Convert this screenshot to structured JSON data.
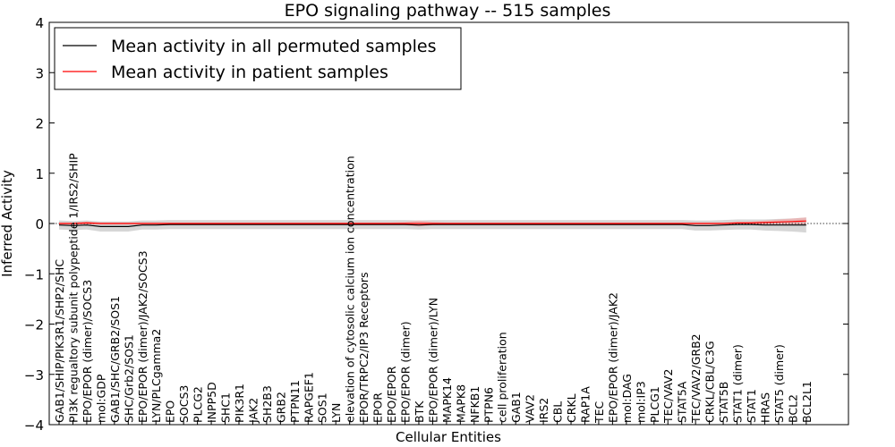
{
  "chart_data": {
    "type": "line",
    "title": "EPO signaling pathway -- 515 samples",
    "xlabel": "Cellular Entities",
    "ylabel": "Inferred Activity",
    "ylim": [
      -4,
      4
    ],
    "yticks": [
      -4,
      -3,
      -2,
      -1,
      0,
      1,
      2,
      3,
      4
    ],
    "ytick_labels": [
      "−4",
      "−3",
      "−2",
      "−1",
      "0",
      "1",
      "2",
      "3",
      "4"
    ],
    "legend_position": "top-left",
    "grid": false,
    "categories": [
      "GAB1/SHIP/PIK3R1/SHP2/SHC",
      "PI3K regualtory subunit polypeptide 1/IRS2/SHIP",
      "EPO/EPOR (dimer)/SOCS3",
      "mol:GDP",
      "GAB1/SHC/GRB2/SOS1",
      "SHC/Grb2/SOS1",
      "EPO/EPOR (dimer)/JAK2/SOCS3",
      "LYN/PLCgamma2",
      "EPO",
      "SOCS3",
      "PLCG2",
      "INPP5D",
      "SHC1",
      "PIK3R1",
      "JAK2",
      "SH2B3",
      "GRB2",
      "PTPN11",
      "RAPGEF1",
      "SOS1",
      "LYN",
      "elevation of cytosolic calcium ion concentration",
      "EPOR/TRPC2/IP3 Receptors",
      "EPOR",
      "EPO/EPOR",
      "EPO/EPOR (dimer)",
      "BTK",
      "EPO/EPOR (dimer)/LYN",
      "MAPK14",
      "MAPK8",
      "NFKB1",
      "PTPN6",
      "cell proliferation",
      "GAB1",
      "VAV2",
      "IRS2",
      "CBL",
      "CRKL",
      "RAP1A",
      "TEC",
      "EPO/EPOR (dimer)/JAK2",
      "mol:DAG",
      "mol:IP3",
      "PLCG1",
      "TEC/VAV2",
      "STAT5A",
      "TEC/VAV2/GRB2",
      "CRKL/CBL/C3G",
      "STAT5B",
      "STAT1 (dimer)",
      "STAT1",
      "HRAS",
      "STAT5 (dimer)",
      "BCL2",
      "BCL2L1"
    ],
    "series": [
      {
        "name": "Mean activity in all permuted samples",
        "color": "#000000",
        "band_color": "#c8c8c8",
        "values": [
          -0.03,
          -0.04,
          -0.03,
          -0.06,
          -0.06,
          -0.06,
          -0.03,
          -0.03,
          -0.02,
          -0.02,
          -0.02,
          -0.02,
          -0.02,
          -0.02,
          -0.02,
          -0.02,
          -0.02,
          -0.02,
          -0.02,
          -0.02,
          -0.02,
          -0.02,
          -0.02,
          -0.02,
          -0.02,
          -0.02,
          -0.03,
          -0.02,
          -0.02,
          -0.02,
          -0.02,
          -0.02,
          -0.02,
          -0.02,
          -0.02,
          -0.02,
          -0.02,
          -0.02,
          -0.02,
          -0.02,
          -0.02,
          -0.02,
          -0.02,
          -0.02,
          -0.02,
          -0.02,
          -0.04,
          -0.04,
          -0.03,
          -0.02,
          -0.02,
          -0.03,
          -0.03,
          -0.03,
          -0.03
        ],
        "band_half_width": [
          0.09,
          0.09,
          0.09,
          0.1,
          0.1,
          0.1,
          0.09,
          0.09,
          0.09,
          0.09,
          0.09,
          0.09,
          0.09,
          0.09,
          0.09,
          0.09,
          0.09,
          0.09,
          0.09,
          0.09,
          0.09,
          0.09,
          0.09,
          0.09,
          0.09,
          0.09,
          0.09,
          0.09,
          0.09,
          0.09,
          0.09,
          0.09,
          0.09,
          0.09,
          0.09,
          0.09,
          0.09,
          0.09,
          0.09,
          0.09,
          0.09,
          0.09,
          0.09,
          0.09,
          0.09,
          0.09,
          0.1,
          0.1,
          0.1,
          0.1,
          0.1,
          0.11,
          0.12,
          0.13,
          0.15
        ]
      },
      {
        "name": "Mean activity in patient samples",
        "color": "#ff0000",
        "band_color": "#f4a0a0",
        "values": [
          0.0,
          0.0,
          0.01,
          0.0,
          0.0,
          0.0,
          0.0,
          0.0,
          0.0,
          0.0,
          0.0,
          0.0,
          0.0,
          0.0,
          0.0,
          0.0,
          0.0,
          0.0,
          0.0,
          0.0,
          0.0,
          0.0,
          0.0,
          0.0,
          0.0,
          0.0,
          0.0,
          0.0,
          0.0,
          0.0,
          0.0,
          0.0,
          0.0,
          0.0,
          0.0,
          0.0,
          0.0,
          0.0,
          0.0,
          0.0,
          0.0,
          0.0,
          0.0,
          0.0,
          0.0,
          0.0,
          0.0,
          0.0,
          0.0,
          0.01,
          0.01,
          0.02,
          0.03,
          0.04,
          0.05
        ],
        "band_half_width": [
          0.02,
          0.02,
          0.03,
          0.02,
          0.02,
          0.02,
          0.02,
          0.02,
          0.02,
          0.02,
          0.02,
          0.02,
          0.02,
          0.02,
          0.02,
          0.02,
          0.02,
          0.02,
          0.02,
          0.02,
          0.02,
          0.02,
          0.02,
          0.02,
          0.02,
          0.03,
          0.06,
          0.03,
          0.02,
          0.02,
          0.02,
          0.02,
          0.02,
          0.02,
          0.02,
          0.02,
          0.02,
          0.02,
          0.02,
          0.02,
          0.02,
          0.02,
          0.02,
          0.02,
          0.02,
          0.02,
          0.02,
          0.02,
          0.02,
          0.02,
          0.03,
          0.04,
          0.05,
          0.06,
          0.07
        ]
      }
    ]
  }
}
